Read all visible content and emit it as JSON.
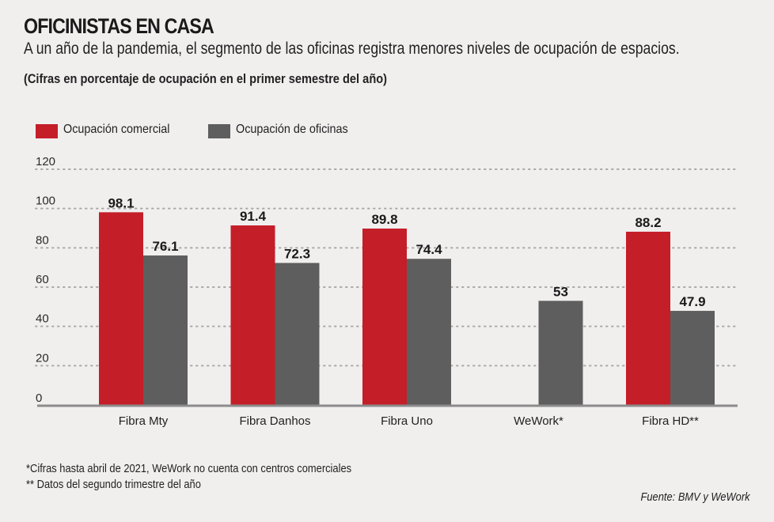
{
  "header": {
    "title": "OFICINISTAS EN CASA",
    "subtitle": "A un año de la pandemia, el segmento de las oficinas registra menores niveles de ocupación de espacios.",
    "note": "(Cifras en porcentaje de ocupación en el primer semestre del año)"
  },
  "colors": {
    "comercial": "#c41e28",
    "oficinas": "#5e5e5e",
    "grid": "#a8a8a8",
    "axis": "#8c8c8c",
    "background": "#f1eeee"
  },
  "legend": [
    {
      "label": "Ocupación comercial",
      "color": "#c41e28"
    },
    {
      "label": "Ocupación de oficinas",
      "color": "#5e5e5e"
    }
  ],
  "chart_data": {
    "type": "bar",
    "title": "OFICINISTAS EN CASA",
    "xlabel": "",
    "ylabel": "",
    "ylim": [
      0,
      120
    ],
    "yticks": [
      "0",
      "20",
      "40",
      "60",
      "80",
      "100",
      "120"
    ],
    "grid": true,
    "legend_position": "top-left",
    "categories": [
      "Fibra Mty",
      "Fibra Danhos",
      "Fibra Uno",
      "WeWork*",
      "Fibra HD**"
    ],
    "series": [
      {
        "name": "Ocupación comercial",
        "values": [
          98.1,
          91.4,
          89.8,
          null,
          88.2
        ],
        "labels": [
          "98.1",
          "91.4",
          "89.8",
          "",
          "88.2"
        ]
      },
      {
        "name": "Ocupación de oficinas",
        "values": [
          76.1,
          72.3,
          74.4,
          53,
          47.9
        ],
        "labels": [
          "76.1",
          "72.3",
          "74.4",
          "53",
          "47.9"
        ]
      }
    ]
  },
  "footnotes": [
    "*Cifras hasta abril de 2021, WeWork no cuenta con centros comerciales",
    "** Datos del segundo trimestre del año"
  ],
  "source": "Fuente: BMV y WeWork"
}
